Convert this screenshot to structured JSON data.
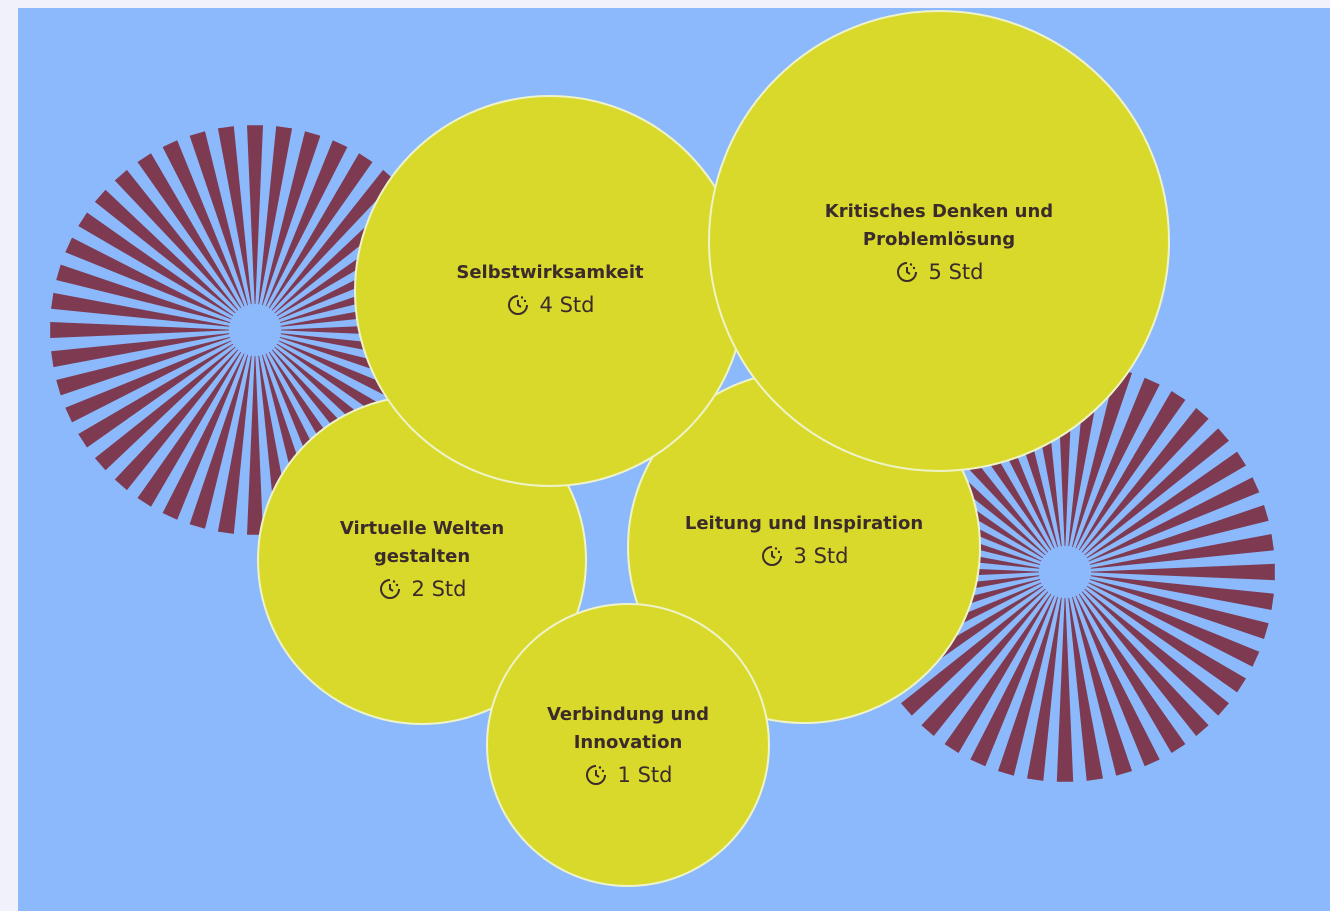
{
  "bubbles": [
    {
      "title": "Selbstwirksamkeit",
      "duration": "4 Std"
    },
    {
      "title": "Kritisches Denken und Problemlösung",
      "duration": "5 Std"
    },
    {
      "title": "Virtuelle Welten gestalten",
      "duration": "2 Std"
    },
    {
      "title": "Leitung und Inspiration",
      "duration": "3 Std"
    },
    {
      "title": "Verbindung und Innovation",
      "duration": "1 Std"
    }
  ]
}
